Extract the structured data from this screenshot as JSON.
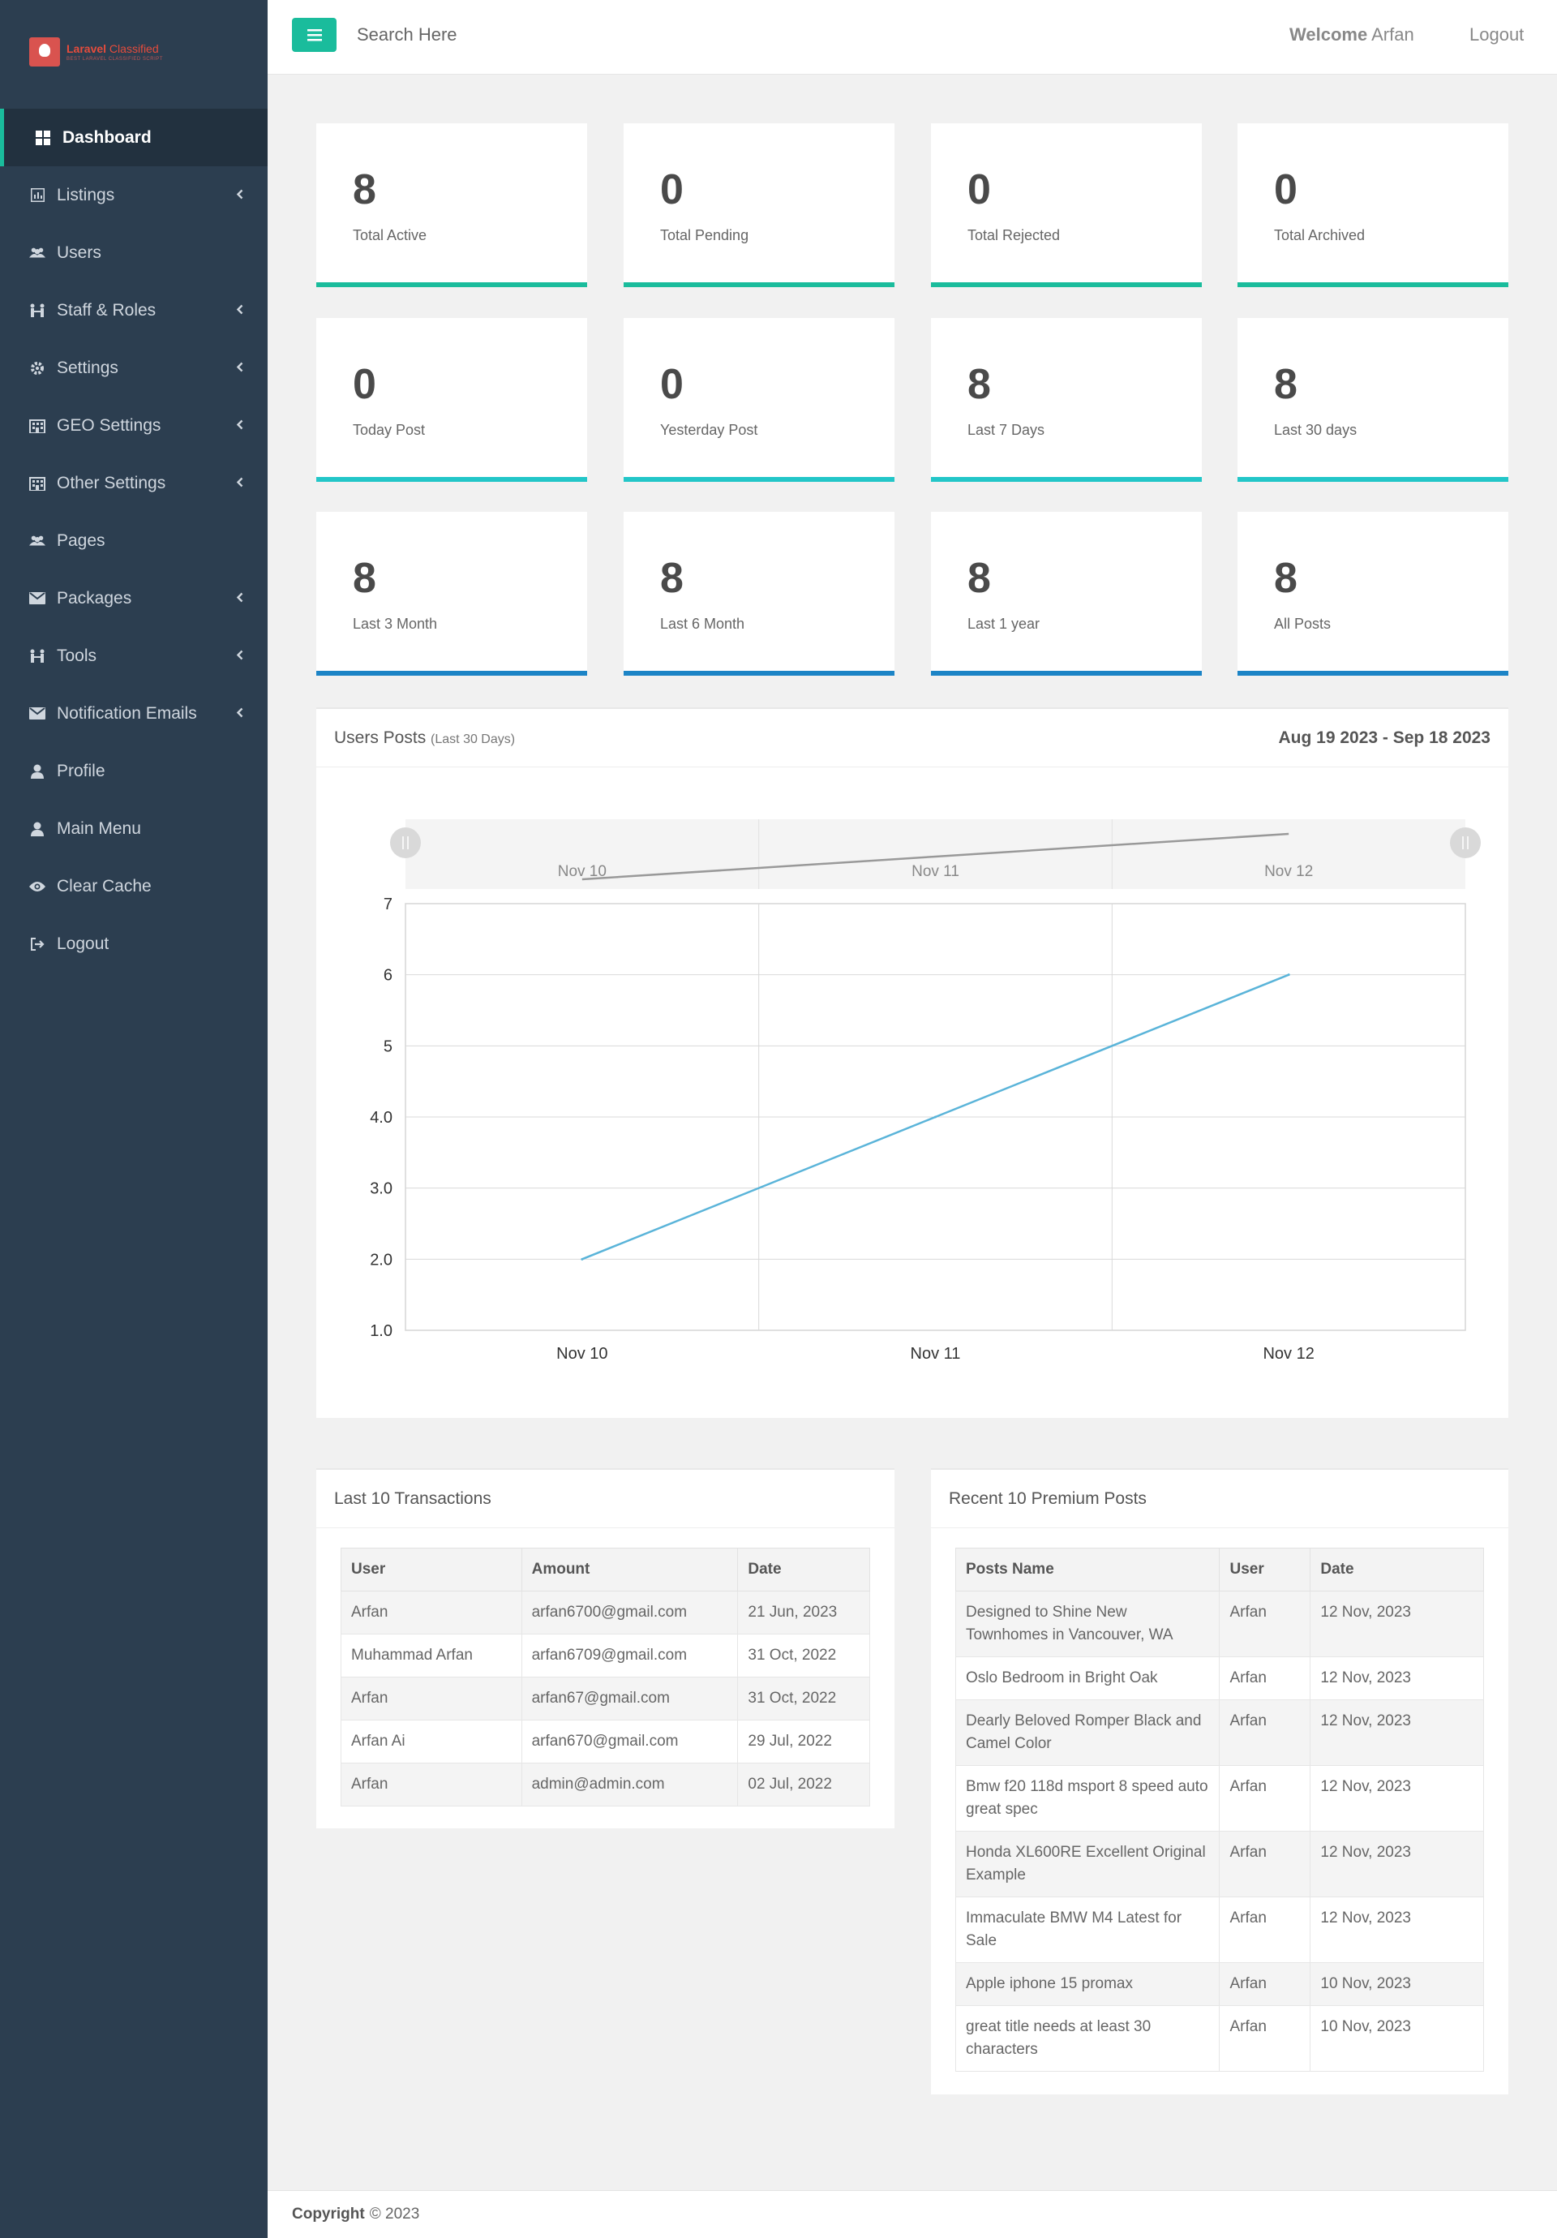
{
  "brand": {
    "name_bold": "Laravel",
    "name_rest": " Classified",
    "tagline": "BEST LARAVEL CLASSIFIED SCRIPT"
  },
  "topbar": {
    "search_placeholder": "Search Here",
    "welcome_label": "Welcome",
    "user_name": "Arfan",
    "logout_label": "Logout"
  },
  "sidebar": {
    "items": [
      {
        "label": "Dashboard",
        "icon": "dashboard-icon",
        "active": true,
        "has_submenu": false
      },
      {
        "label": "Listings",
        "icon": "chart-icon",
        "has_submenu": true
      },
      {
        "label": "Users",
        "icon": "users-icon",
        "has_submenu": false
      },
      {
        "label": "Staff & Roles",
        "icon": "staff-icon",
        "has_submenu": true
      },
      {
        "label": "Settings",
        "icon": "gear-icon",
        "has_submenu": true
      },
      {
        "label": "GEO Settings",
        "icon": "building-icon",
        "has_submenu": true
      },
      {
        "label": "Other Settings",
        "icon": "building-icon",
        "has_submenu": true
      },
      {
        "label": "Pages",
        "icon": "users-icon",
        "has_submenu": false
      },
      {
        "label": "Packages",
        "icon": "envelope-icon",
        "has_submenu": true
      },
      {
        "label": "Tools",
        "icon": "tools-icon",
        "has_submenu": true
      },
      {
        "label": "Notification Emails",
        "icon": "envelope-icon",
        "has_submenu": true
      },
      {
        "label": "Profile",
        "icon": "user-icon",
        "has_submenu": false
      },
      {
        "label": "Main Menu",
        "icon": "user-icon",
        "has_submenu": false
      },
      {
        "label": "Clear Cache",
        "icon": "eye-icon",
        "has_submenu": false
      },
      {
        "label": "Logout",
        "icon": "signout-icon",
        "has_submenu": false
      }
    ]
  },
  "stats": [
    {
      "value": "8",
      "label": "Total Active",
      "color": "#1abc9c"
    },
    {
      "value": "0",
      "label": "Total Pending",
      "color": "#1abc9c"
    },
    {
      "value": "0",
      "label": "Total Rejected",
      "color": "#1abc9c"
    },
    {
      "value": "0",
      "label": "Total Archived",
      "color": "#1abc9c"
    },
    {
      "value": "0",
      "label": "Today Post",
      "color": "#23c6c8"
    },
    {
      "value": "0",
      "label": "Yesterday Post",
      "color": "#23c6c8"
    },
    {
      "value": "8",
      "label": "Last 7 Days",
      "color": "#23c6c8"
    },
    {
      "value": "8",
      "label": "Last 30 days",
      "color": "#23c6c8"
    },
    {
      "value": "8",
      "label": "Last 3 Month",
      "color": "#1c84c6"
    },
    {
      "value": "8",
      "label": "Last 6 Month",
      "color": "#1c84c6"
    },
    {
      "value": "8",
      "label": "Last 1 year",
      "color": "#1c84c6"
    },
    {
      "value": "8",
      "label": "All Posts",
      "color": "#1c84c6"
    }
  ],
  "chart_panel": {
    "title": "Users Posts",
    "subtitle": "(Last 30 Days)",
    "date_range": "Aug 19 2023 - Sep 18 2023"
  },
  "chart_data": {
    "type": "line",
    "categories": [
      "Nov 10",
      "Nov 11",
      "Nov 12"
    ],
    "series": [
      {
        "values": [
          2,
          4,
          6
        ]
      }
    ],
    "y_ticks": [
      "1.0",
      "2.0",
      "3.0",
      "4.0",
      "5",
      "6",
      "7"
    ],
    "ylim": [
      1,
      7
    ],
    "grid": true,
    "line_color": "#5ab4d9",
    "navigator_color": "#999999"
  },
  "transactions": {
    "title": "Last 10 Transactions",
    "headers": [
      "User",
      "Amount",
      "Date"
    ],
    "rows": [
      [
        "Arfan",
        "arfan6700@gmail.com",
        "21 Jun, 2023"
      ],
      [
        "Muhammad Arfan",
        "arfan6709@gmail.com",
        "31 Oct, 2022"
      ],
      [
        "Arfan",
        "arfan67@gmail.com",
        "31 Oct, 2022"
      ],
      [
        "Arfan Ai",
        "arfan670@gmail.com",
        "29 Jul, 2022"
      ],
      [
        "Arfan",
        "admin@admin.com",
        "02 Jul, 2022"
      ]
    ]
  },
  "premium_posts": {
    "title": "Recent 10 Premium Posts",
    "headers": [
      "Posts Name",
      "User",
      "Date"
    ],
    "rows": [
      [
        "Designed to Shine New Townhomes in Vancouver, WA",
        "Arfan",
        "12 Nov, 2023"
      ],
      [
        "Oslo Bedroom in Bright Oak",
        "Arfan",
        "12 Nov, 2023"
      ],
      [
        "Dearly Beloved Romper Black and Camel Color",
        "Arfan",
        "12 Nov, 2023"
      ],
      [
        "Bmw f20 118d msport 8 speed auto great spec",
        "Arfan",
        "12 Nov, 2023"
      ],
      [
        "Honda XL600RE Excellent Original Example",
        "Arfan",
        "12 Nov, 2023"
      ],
      [
        "Immaculate BMW M4 Latest for Sale",
        "Arfan",
        "12 Nov, 2023"
      ],
      [
        "Apple iphone 15 promax",
        "Arfan",
        "10 Nov, 2023"
      ],
      [
        "great title needs at least 30 characters",
        "Arfan",
        "10 Nov, 2023"
      ]
    ]
  },
  "footer": {
    "copyright_label": "Copyright",
    "copyright_text": "© 2023"
  }
}
